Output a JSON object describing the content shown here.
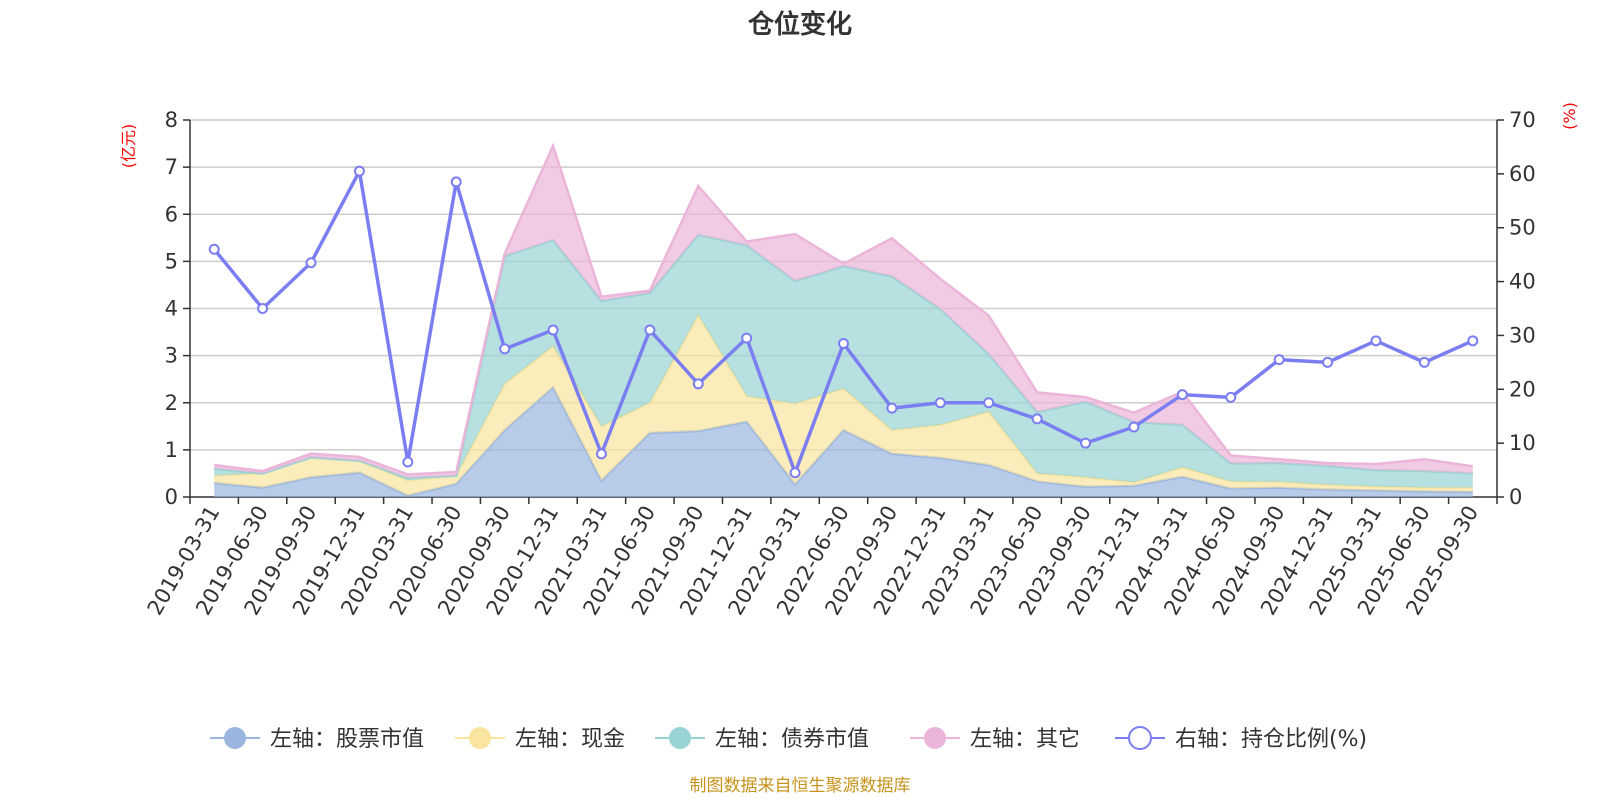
{
  "chart_data": {
    "type": "area",
    "title": "仓位变化",
    "left_axis": {
      "unit": "(亿元)",
      "min": 0,
      "max": 8,
      "ticks": [
        0,
        1,
        2,
        3,
        4,
        5,
        6,
        7,
        8
      ]
    },
    "right_axis": {
      "unit": "(%)",
      "min": 0,
      "max": 70,
      "ticks": [
        0,
        10,
        20,
        30,
        40,
        50,
        60,
        70
      ]
    },
    "categories": [
      "2019-03-31",
      "2019-06-30",
      "2019-09-30",
      "2019-12-31",
      "2020-03-31",
      "2020-06-30",
      "2020-09-30",
      "2020-12-31",
      "2021-03-31",
      "2021-06-30",
      "2021-09-30",
      "2021-12-31",
      "2022-03-31",
      "2022-06-30",
      "2022-09-30",
      "2022-12-31",
      "2023-03-31",
      "2023-06-30",
      "2023-09-30",
      "2023-12-31",
      "2024-03-31",
      "2024-06-30",
      "2024-09-30",
      "2024-12-31",
      "2025-03-31",
      "2025-06-30",
      "2025-09-30"
    ],
    "series": [
      {
        "name": "左轴：股票市值",
        "axis": "left",
        "stacked": true,
        "color": "#9ab6e0",
        "values": [
          0.3,
          0.2,
          0.42,
          0.52,
          0.03,
          0.28,
          1.42,
          2.33,
          0.35,
          1.36,
          1.4,
          1.6,
          0.27,
          1.42,
          0.92,
          0.83,
          0.68,
          0.33,
          0.22,
          0.24,
          0.43,
          0.18,
          0.2,
          0.16,
          0.14,
          0.12,
          0.11
        ]
      },
      {
        "name": "左轴：现金",
        "axis": "left",
        "stacked": true,
        "color": "#f9e4a0",
        "values": [
          0.15,
          0.3,
          0.42,
          0.25,
          0.32,
          0.17,
          0.98,
          0.87,
          1.15,
          0.64,
          2.46,
          0.54,
          1.71,
          0.88,
          0.5,
          0.7,
          1.13,
          0.17,
          0.2,
          0.07,
          0.2,
          0.15,
          0.12,
          0.1,
          0.08,
          0.08,
          0.09
        ]
      },
      {
        "name": "左轴：债券市值",
        "axis": "left",
        "stacked": true,
        "color": "#99d4d4",
        "values": [
          0.15,
          0.0,
          0.0,
          0.0,
          0.05,
          0.0,
          2.71,
          2.25,
          2.66,
          2.33,
          1.7,
          3.2,
          2.6,
          2.6,
          3.26,
          2.46,
          1.22,
          1.3,
          1.6,
          1.28,
          0.9,
          0.38,
          0.4,
          0.4,
          0.35,
          0.35,
          0.3
        ]
      },
      {
        "name": "左轴：其它",
        "axis": "left",
        "stacked": true,
        "color": "#ebb5d9",
        "values": [
          0.08,
          0.05,
          0.08,
          0.08,
          0.08,
          0.08,
          0.05,
          2.0,
          0.09,
          0.05,
          1.04,
          0.08,
          1.0,
          0.05,
          0.81,
          0.64,
          0.82,
          0.42,
          0.1,
          0.2,
          0.7,
          0.17,
          0.08,
          0.06,
          0.13,
          0.25,
          0.15
        ]
      },
      {
        "name": "右轴：持仓比例(%)",
        "axis": "right",
        "type": "line",
        "color": "#7b7ef0",
        "values": [
          46,
          35,
          43.5,
          60.5,
          6.5,
          58.5,
          27.5,
          31,
          8,
          31,
          21,
          29.5,
          4.5,
          28.5,
          16.5,
          17.5,
          17.5,
          14.5,
          10,
          13,
          19,
          18.5,
          25.5,
          25,
          29,
          25,
          29
        ]
      }
    ],
    "legend_position": "bottom",
    "source": "制图数据来自恒生聚源数据库"
  }
}
